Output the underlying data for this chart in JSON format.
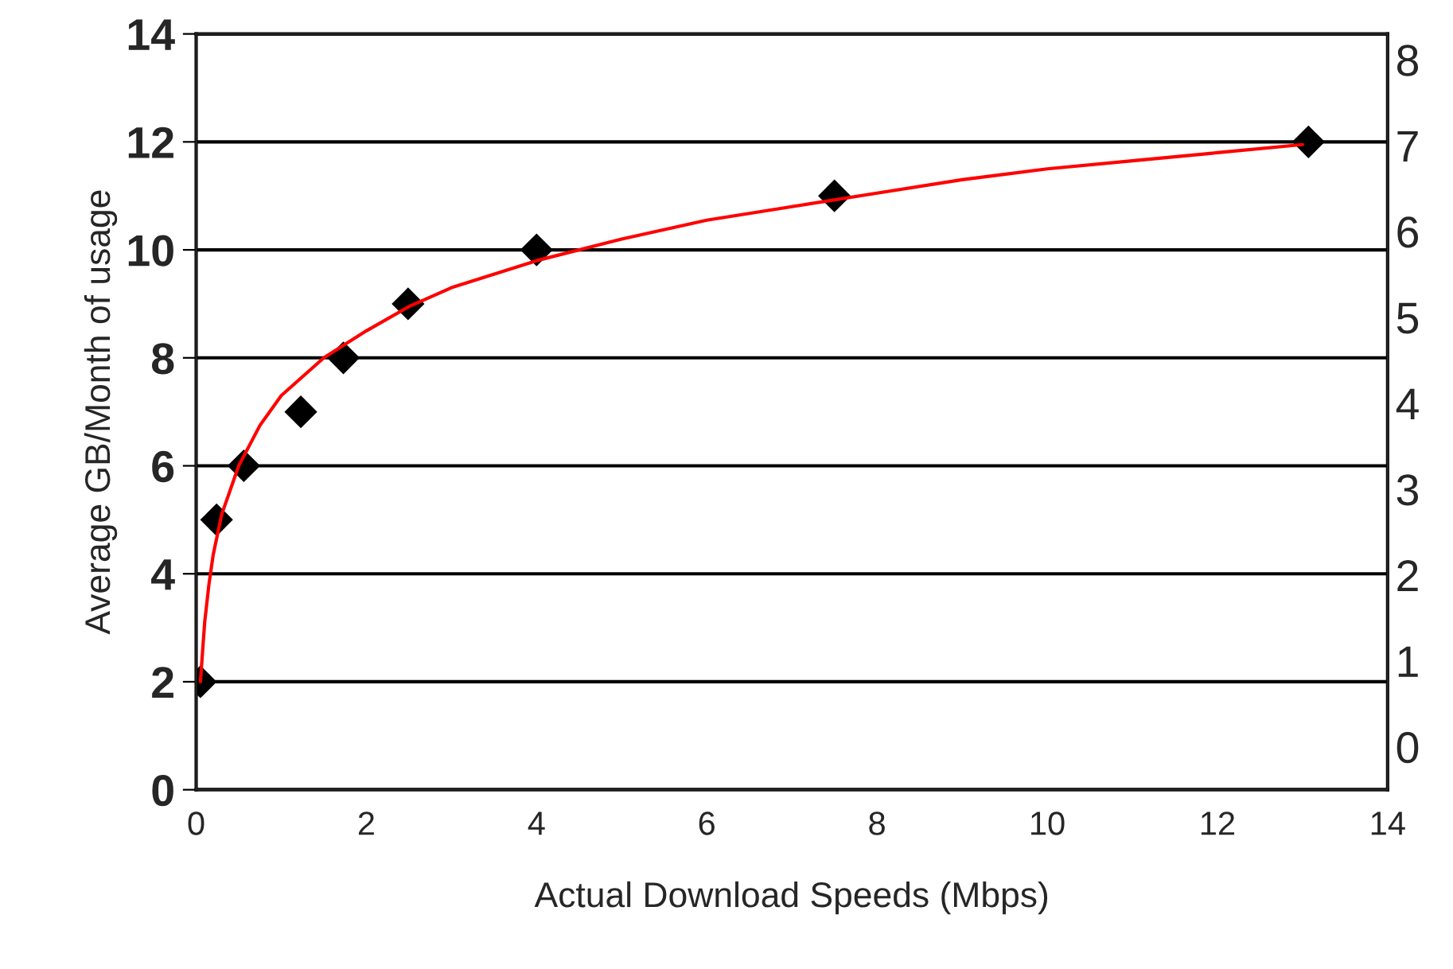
{
  "chart_data": {
    "type": "scatter",
    "xlabel": "Actual Download Speeds (Mbps)",
    "ylabel": "Average GB/Month of usage",
    "series": [
      {
        "color": "#000000",
        "marker": "diamond",
        "x": [
          0.05,
          0.24,
          0.56,
          1.23,
          1.73,
          2.49,
          4.0,
          7.5,
          13.07
        ],
        "values": [
          2,
          5,
          6,
          7,
          8,
          9,
          10,
          11,
          12
        ]
      },
      {
        "type": "line",
        "color": "#ff0000",
        "marker": "none",
        "line_style": "solid",
        "x": [
          0.05,
          0.1,
          0.15,
          0.2,
          0.3,
          0.5,
          0.75,
          1,
          1.5,
          2,
          2.5,
          3,
          4,
          5,
          6,
          7,
          8,
          9,
          10,
          11,
          12,
          13
        ],
        "values": [
          2.0,
          3.1,
          3.8,
          4.35,
          5.1,
          6.0,
          6.75,
          7.3,
          8.0,
          8.5,
          8.95,
          9.3,
          9.8,
          10.2,
          10.55,
          10.8,
          11.05,
          11.3,
          11.5,
          11.65,
          11.8,
          11.95
        ]
      }
    ],
    "xlim": [
      0,
      14
    ],
    "xticks": [
      0,
      2,
      4,
      6,
      8,
      10,
      12,
      14
    ],
    "ylim": [
      0,
      14
    ],
    "yticks": [
      0,
      2,
      4,
      6,
      8,
      10,
      12,
      14
    ],
    "y2lim": [
      -0.5,
      8.3
    ],
    "y2ticks": [
      0,
      1,
      2,
      3,
      4,
      5,
      6,
      7,
      8
    ],
    "grid": "y",
    "legend": false
  }
}
